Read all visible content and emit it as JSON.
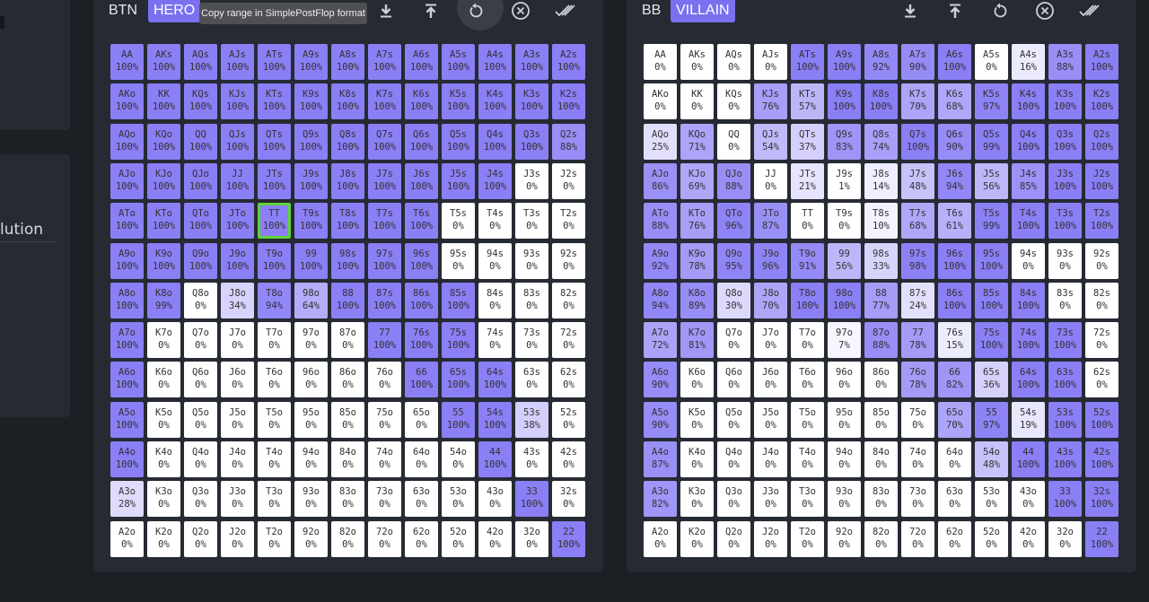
{
  "sidebar": {
    "partial_label": "lution"
  },
  "hands": [
    [
      "AA",
      "AKs",
      "AQs",
      "AJs",
      "ATs",
      "A9s",
      "A8s",
      "A7s",
      "A6s",
      "A5s",
      "A4s",
      "A3s",
      "A2s"
    ],
    [
      "AKo",
      "KK",
      "KQs",
      "KJs",
      "KTs",
      "K9s",
      "K8s",
      "K7s",
      "K6s",
      "K5s",
      "K4s",
      "K3s",
      "K2s"
    ],
    [
      "AQo",
      "KQo",
      "QQ",
      "QJs",
      "QTs",
      "Q9s",
      "Q8s",
      "Q7s",
      "Q6s",
      "Q5s",
      "Q4s",
      "Q3s",
      "Q2s"
    ],
    [
      "AJo",
      "KJo",
      "QJo",
      "JJ",
      "JTs",
      "J9s",
      "J8s",
      "J7s",
      "J6s",
      "J5s",
      "J4s",
      "J3s",
      "J2s"
    ],
    [
      "ATo",
      "KTo",
      "QTo",
      "JTo",
      "TT",
      "T9s",
      "T8s",
      "T7s",
      "T6s",
      "T5s",
      "T4s",
      "T3s",
      "T2s"
    ],
    [
      "A9o",
      "K9o",
      "Q9o",
      "J9o",
      "T9o",
      "99",
      "98s",
      "97s",
      "96s",
      "95s",
      "94s",
      "93s",
      "92s"
    ],
    [
      "A8o",
      "K8o",
      "Q8o",
      "J8o",
      "T8o",
      "98o",
      "88",
      "87s",
      "86s",
      "85s",
      "84s",
      "83s",
      "82s"
    ],
    [
      "A7o",
      "K7o",
      "Q7o",
      "J7o",
      "T7o",
      "97o",
      "87o",
      "77",
      "76s",
      "75s",
      "74s",
      "73s",
      "72s"
    ],
    [
      "A6o",
      "K6o",
      "Q6o",
      "J6o",
      "T6o",
      "96o",
      "86o",
      "76o",
      "66",
      "65s",
      "64s",
      "63s",
      "62s"
    ],
    [
      "A5o",
      "K5o",
      "Q5o",
      "J5o",
      "T5o",
      "95o",
      "85o",
      "75o",
      "65o",
      "55",
      "54s",
      "53s",
      "52s"
    ],
    [
      "A4o",
      "K4o",
      "Q4o",
      "J4o",
      "T4o",
      "94o",
      "84o",
      "74o",
      "64o",
      "54o",
      "44",
      "43s",
      "42s"
    ],
    [
      "A3o",
      "K3o",
      "Q3o",
      "J3o",
      "T3o",
      "93o",
      "83o",
      "73o",
      "63o",
      "53o",
      "43o",
      "33",
      "32s"
    ],
    [
      "A2o",
      "K2o",
      "Q2o",
      "J2o",
      "T2o",
      "92o",
      "82o",
      "72o",
      "62o",
      "52o",
      "42o",
      "32o",
      "22"
    ]
  ],
  "colors": {
    "full": "#8a7ff5",
    "empty": "#ffffff",
    "selected_border": "#5fd23a",
    "badge": "#7b70f0"
  },
  "toolbar_icons": [
    "download-icon",
    "upload-icon",
    "reset-icon",
    "clear-icon",
    "check-all-icon"
  ],
  "tooltip": "Copy range in SimplePostFlop format",
  "ranges": [
    {
      "position": "BTN",
      "role": "HERO",
      "selected_hand": "TT",
      "percent": [
        [
          100,
          100,
          100,
          100,
          100,
          100,
          100,
          100,
          100,
          100,
          100,
          100,
          100
        ],
        [
          100,
          100,
          100,
          100,
          100,
          100,
          100,
          100,
          100,
          100,
          100,
          100,
          100
        ],
        [
          100,
          100,
          100,
          100,
          100,
          100,
          100,
          100,
          100,
          100,
          100,
          100,
          88
        ],
        [
          100,
          100,
          100,
          100,
          100,
          100,
          100,
          100,
          100,
          100,
          100,
          0,
          0
        ],
        [
          100,
          100,
          100,
          100,
          100,
          100,
          100,
          100,
          100,
          0,
          0,
          0,
          0
        ],
        [
          100,
          100,
          100,
          100,
          100,
          100,
          100,
          100,
          100,
          0,
          0,
          0,
          0
        ],
        [
          100,
          99,
          0,
          34,
          94,
          64,
          100,
          100,
          100,
          100,
          0,
          0,
          0
        ],
        [
          100,
          0,
          0,
          0,
          0,
          0,
          0,
          100,
          100,
          100,
          0,
          0,
          0
        ],
        [
          100,
          0,
          0,
          0,
          0,
          0,
          0,
          0,
          100,
          100,
          100,
          0,
          0
        ],
        [
          100,
          0,
          0,
          0,
          0,
          0,
          0,
          0,
          0,
          100,
          100,
          38,
          0
        ],
        [
          100,
          0,
          0,
          0,
          0,
          0,
          0,
          0,
          0,
          0,
          100,
          0,
          0
        ],
        [
          28,
          0,
          0,
          0,
          0,
          0,
          0,
          0,
          0,
          0,
          0,
          100,
          0
        ],
        [
          0,
          0,
          0,
          0,
          0,
          0,
          0,
          0,
          0,
          0,
          0,
          0,
          100
        ]
      ]
    },
    {
      "position": "BB",
      "role": "VILLAIN",
      "selected_hand": "",
      "percent": [
        [
          0,
          0,
          0,
          0,
          100,
          100,
          92,
          90,
          100,
          0,
          16,
          88,
          100
        ],
        [
          0,
          0,
          0,
          76,
          57,
          100,
          100,
          70,
          68,
          97,
          100,
          100,
          100
        ],
        [
          25,
          71,
          0,
          54,
          37,
          83,
          74,
          100,
          90,
          99,
          100,
          100,
          100
        ],
        [
          86,
          69,
          88,
          0,
          21,
          1,
          14,
          48,
          94,
          56,
          85,
          100,
          100
        ],
        [
          88,
          76,
          96,
          87,
          0,
          0,
          10,
          68,
          61,
          99,
          100,
          100,
          100
        ],
        [
          92,
          78,
          95,
          96,
          91,
          56,
          33,
          98,
          100,
          100,
          0,
          0,
          0
        ],
        [
          94,
          89,
          30,
          70,
          100,
          100,
          77,
          24,
          100,
          100,
          100,
          0,
          0
        ],
        [
          72,
          81,
          0,
          0,
          0,
          7,
          88,
          78,
          15,
          100,
          100,
          100,
          0
        ],
        [
          90,
          0,
          0,
          0,
          0,
          0,
          0,
          78,
          82,
          36,
          100,
          100,
          0
        ],
        [
          90,
          0,
          0,
          0,
          0,
          0,
          0,
          0,
          70,
          97,
          19,
          100,
          100
        ],
        [
          87,
          0,
          0,
          0,
          0,
          0,
          0,
          0,
          0,
          48,
          100,
          100,
          100
        ],
        [
          82,
          0,
          0,
          0,
          0,
          0,
          0,
          0,
          0,
          0,
          0,
          100,
          100
        ],
        [
          0,
          0,
          0,
          0,
          0,
          0,
          0,
          0,
          0,
          0,
          0,
          0,
          100
        ]
      ]
    }
  ]
}
